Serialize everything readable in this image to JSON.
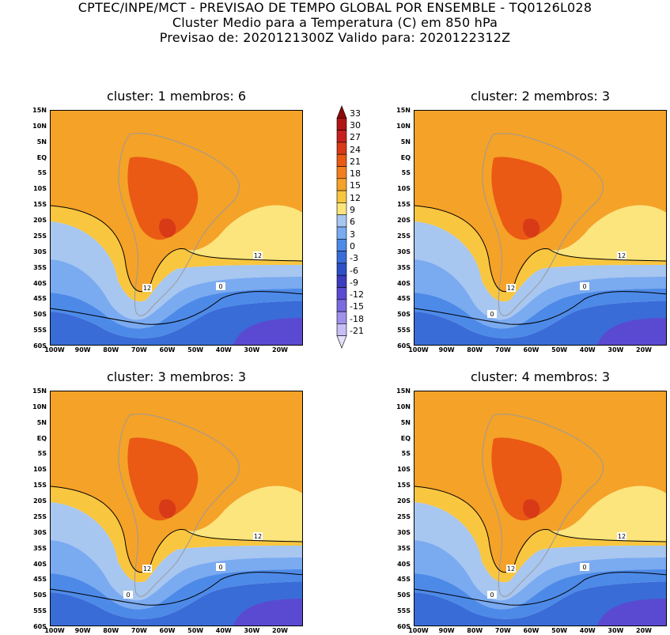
{
  "header": {
    "line1": "CPTEC/INPE/MCT - PREVISAO DE TEMPO GLOBAL POR ENSEMBLE - TQ0126L028",
    "line2": "Cluster Medio para a Temperatura (C) em 850 hPa",
    "line3": "Previsao de: 2020121300Z   Valido para: 2020122312Z"
  },
  "panels": [
    {
      "title": "cluster: 1   membros: 6",
      "contour_labels": [
        "12",
        "12",
        "0"
      ]
    },
    {
      "title": "cluster: 2   membros: 3",
      "contour_labels": [
        "12",
        "12",
        "0",
        "0"
      ]
    },
    {
      "title": "cluster: 3   membros: 3",
      "contour_labels": [
        "12",
        "12",
        "0",
        "0"
      ]
    },
    {
      "title": "cluster: 4   membros: 3",
      "contour_labels": [
        "12",
        "12",
        "0",
        "0"
      ]
    }
  ],
  "lat_ticks": [
    "15N",
    "10N",
    "5N",
    "EQ",
    "5S",
    "10S",
    "15S",
    "20S",
    "25S",
    "30S",
    "35S",
    "40S",
    "45S",
    "50S",
    "55S",
    "60S"
  ],
  "lon_ticks": [
    "100W",
    "90W",
    "80W",
    "70W",
    "60W",
    "50W",
    "40W",
    "30W",
    "20W"
  ],
  "colorbar": {
    "labels": [
      "33",
      "30",
      "27",
      "24",
      "21",
      "18",
      "15",
      "12",
      "9",
      "6",
      "3",
      "0",
      "-3",
      "-6",
      "-9",
      "-12",
      "-15",
      "-18",
      "-21"
    ],
    "colors": [
      "#8b0a0a",
      "#b01515",
      "#c62020",
      "#d83a18",
      "#ea5a14",
      "#f2801e",
      "#f5a228",
      "#f9c640",
      "#fbe57c",
      "#a7c6f0",
      "#7aaaf0",
      "#4d8ae8",
      "#3a6cd8",
      "#2d50c8",
      "#3c3cc0",
      "#5a4ad2",
      "#7a6ae0",
      "#a090ec",
      "#c8bef5",
      "#e6e0fa"
    ]
  }
}
